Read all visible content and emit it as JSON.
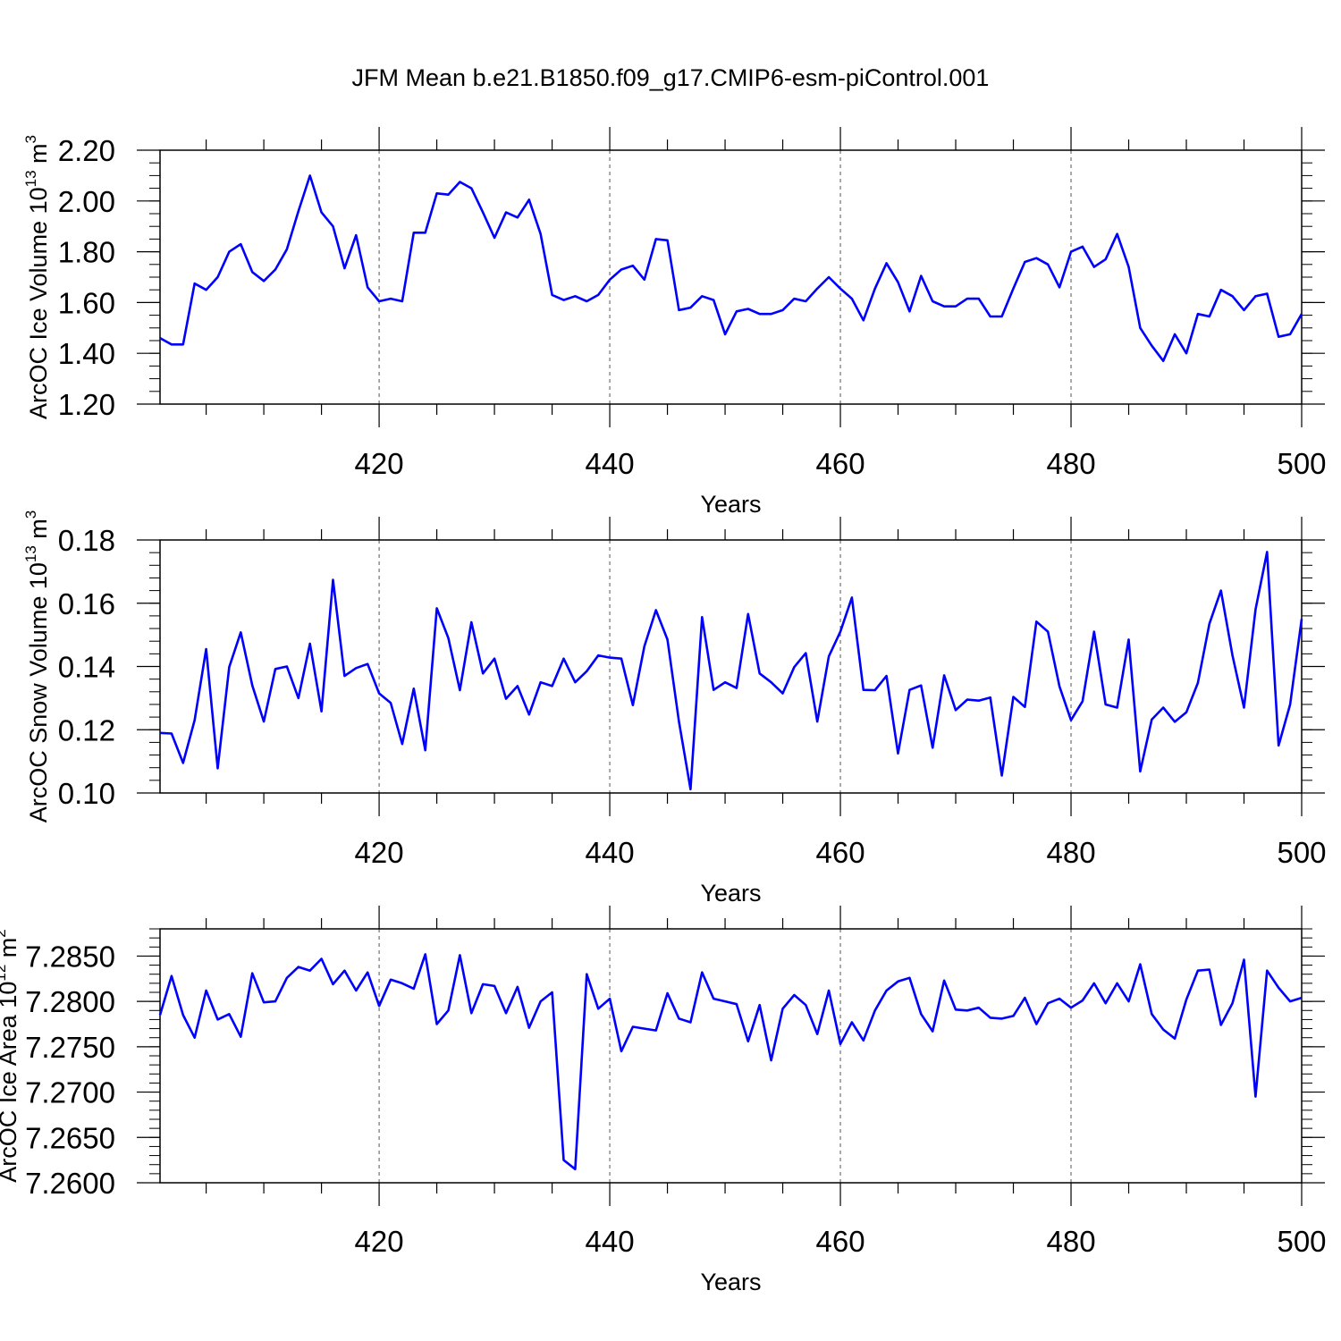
{
  "title": "JFM Mean b.e21.B1850.f09_g17.CMIP6-esm-piControl.001",
  "line_color": "#0000ff",
  "chart_data": [
    {
      "type": "line",
      "xlabel": "Years",
      "ylabel": "ArcOC Ice Volume 10",
      "ylabel_exp": "13",
      "ylabel_unit": " m",
      "ylabel_unit_exp": "3",
      "xlim": [
        401,
        500
      ],
      "ylim": [
        1.2,
        2.2
      ],
      "x_ticks": [
        420,
        440,
        460,
        480,
        500
      ],
      "x_tick_labels": [
        "420",
        "440",
        "460",
        "480",
        "500"
      ],
      "y_ticks": [
        1.2,
        1.4,
        1.6,
        1.8,
        2.0,
        2.2
      ],
      "y_tick_labels": [
        "1.20",
        "1.40",
        "1.60",
        "1.80",
        "2.00",
        "2.20"
      ],
      "y_minor_step": 0.05,
      "gridlines_x": [
        420,
        440,
        460,
        480
      ],
      "x_start": 401,
      "values": [
        1.46,
        1.435,
        1.435,
        1.675,
        1.65,
        1.7,
        1.8,
        1.83,
        1.72,
        1.685,
        1.73,
        1.81,
        1.96,
        2.1,
        1.955,
        1.9,
        1.735,
        1.865,
        1.66,
        1.605,
        1.615,
        1.605,
        1.875,
        1.875,
        2.03,
        2.025,
        2.075,
        2.05,
        1.955,
        1.855,
        1.955,
        1.935,
        2.005,
        1.87,
        1.63,
        1.61,
        1.625,
        1.605,
        1.63,
        1.69,
        1.73,
        1.745,
        1.69,
        1.85,
        1.845,
        1.57,
        1.58,
        1.625,
        1.61,
        1.475,
        1.565,
        1.575,
        1.555,
        1.555,
        1.57,
        1.615,
        1.605,
        1.655,
        1.7,
        1.655,
        1.615,
        1.53,
        1.655,
        1.755,
        1.68,
        1.565,
        1.705,
        1.605,
        1.585,
        1.585,
        1.615,
        1.615,
        1.545,
        1.545,
        1.655,
        1.76,
        1.775,
        1.75,
        1.66,
        1.8,
        1.82,
        1.74,
        1.77,
        1.87,
        1.74,
        1.5,
        1.43,
        1.37,
        1.475,
        1.4,
        1.555,
        1.545,
        1.65,
        1.625,
        1.57,
        1.625,
        1.635,
        1.465,
        1.475,
        1.555
      ]
    },
    {
      "type": "line",
      "xlabel": "Years",
      "ylabel": "ArcOC Snow Volume 10",
      "ylabel_exp": "13",
      "ylabel_unit": " m",
      "ylabel_unit_exp": "3",
      "xlim": [
        401,
        500
      ],
      "ylim": [
        0.1,
        0.18
      ],
      "x_ticks": [
        420,
        440,
        460,
        480,
        500
      ],
      "x_tick_labels": [
        "420",
        "440",
        "460",
        "480",
        "500"
      ],
      "y_ticks": [
        0.1,
        0.12,
        0.14,
        0.16,
        0.18
      ],
      "y_tick_labels": [
        "0.10",
        "0.12",
        "0.14",
        "0.16",
        "0.18"
      ],
      "y_minor_step": 0.004,
      "gridlines_x": [
        420,
        440,
        460,
        480
      ],
      "x_start": 401,
      "values": [
        0.119,
        0.1188,
        0.1095,
        0.123,
        0.1455,
        0.1078,
        0.1398,
        0.1508,
        0.134,
        0.1226,
        0.1392,
        0.14,
        0.13,
        0.1472,
        0.1258,
        0.1674,
        0.137,
        0.1395,
        0.1408,
        0.1315,
        0.1285,
        0.1155,
        0.133,
        0.1135,
        0.1584,
        0.149,
        0.1325,
        0.154,
        0.1378,
        0.1425,
        0.1298,
        0.1338,
        0.1248,
        0.135,
        0.1338,
        0.1425,
        0.135,
        0.1385,
        0.1435,
        0.1428,
        0.1425,
        0.1278,
        0.1464,
        0.1578,
        0.1485,
        0.1225,
        0.1012,
        0.1556,
        0.1326,
        0.135,
        0.1332,
        0.1566,
        0.1378,
        0.135,
        0.1315,
        0.1398,
        0.1442,
        0.1226,
        0.1432,
        0.151,
        0.1618,
        0.1326,
        0.1325,
        0.137,
        0.1125,
        0.1326,
        0.134,
        0.1143,
        0.1372,
        0.1262,
        0.1295,
        0.1292,
        0.1302,
        0.1055,
        0.1304,
        0.1272,
        0.1542,
        0.151,
        0.1337,
        0.123,
        0.129,
        0.151,
        0.128,
        0.127,
        0.1485,
        0.1068,
        0.1232,
        0.127,
        0.1225,
        0.1255,
        0.1348,
        0.1535,
        0.164,
        0.1435,
        0.127,
        0.158,
        0.1762,
        0.115,
        0.128,
        0.155
      ]
    },
    {
      "type": "line",
      "xlabel": "Years",
      "ylabel": "ArcOC Ice Area 10",
      "ylabel_exp": "12",
      "ylabel_unit": " m",
      "ylabel_unit_exp": "2",
      "xlim": [
        401,
        500
      ],
      "ylim": [
        7.26,
        7.288
      ],
      "x_ticks": [
        420,
        440,
        460,
        480,
        500
      ],
      "x_tick_labels": [
        "420",
        "440",
        "460",
        "480",
        "500"
      ],
      "y_ticks": [
        7.26,
        7.265,
        7.27,
        7.275,
        7.28,
        7.285
      ],
      "y_tick_labels": [
        "7.2600",
        "7.2650",
        "7.2700",
        "7.2750",
        "7.2800",
        "7.2850"
      ],
      "y_minor_step": 0.001,
      "gridlines_x": [
        420,
        440,
        460,
        480
      ],
      "x_start": 401,
      "values": [
        7.2785,
        7.2828,
        7.2785,
        7.276,
        7.2812,
        7.278,
        7.2786,
        7.2761,
        7.2831,
        7.2799,
        7.28,
        7.2826,
        7.2838,
        7.2834,
        7.2847,
        7.2819,
        7.2834,
        7.2812,
        7.2832,
        7.2795,
        7.2824,
        7.282,
        7.2814,
        7.2852,
        7.2775,
        7.279,
        7.2851,
        7.2787,
        7.2819,
        7.2817,
        7.2787,
        7.2816,
        7.2771,
        7.28,
        7.281,
        7.2625,
        7.2615,
        7.283,
        7.2792,
        7.2803,
        7.2745,
        7.2772,
        7.277,
        7.2768,
        7.2809,
        7.2781,
        7.2777,
        7.2832,
        7.2803,
        7.28,
        7.2797,
        7.2756,
        7.2796,
        7.2735,
        7.2792,
        7.2807,
        7.2796,
        7.2764,
        7.2812,
        7.2753,
        7.2777,
        7.2757,
        7.279,
        7.2812,
        7.2822,
        7.2826,
        7.2786,
        7.2767,
        7.2823,
        7.2791,
        7.279,
        7.2793,
        7.2782,
        7.2781,
        7.2784,
        7.2804,
        7.2775,
        7.2798,
        7.2803,
        7.2793,
        7.2801,
        7.282,
        7.2798,
        7.282,
        7.28,
        7.2841,
        7.2786,
        7.2769,
        7.2759,
        7.2802,
        7.2834,
        7.2835,
        7.2774,
        7.2798,
        7.2846,
        7.2695,
        7.2834,
        7.2815,
        7.28,
        7.2804
      ]
    }
  ]
}
